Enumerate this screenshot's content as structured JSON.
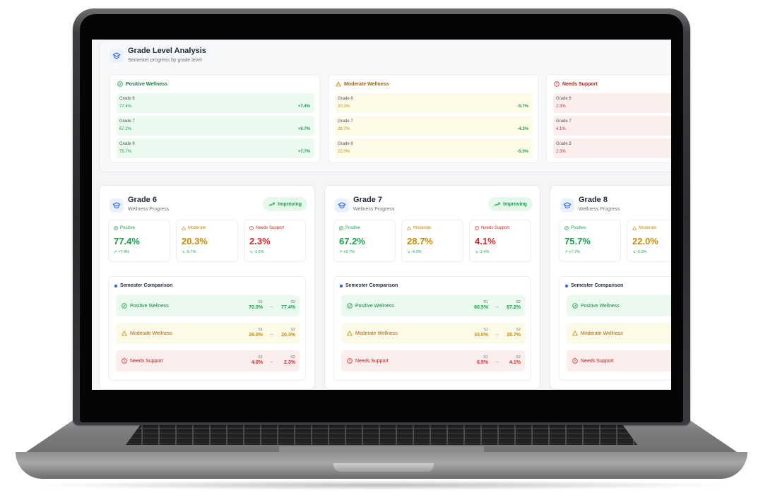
{
  "analysis": {
    "title": "Grade Level Analysis",
    "subtitle": "Semester progress by grade level",
    "categories": [
      {
        "label": "Positive Wellness",
        "color": "#16a34a",
        "rows": [
          {
            "grade": "Grade 6",
            "value": "77.4%",
            "delta": "+7.4%"
          },
          {
            "grade": "Grade 7",
            "value": "67.2%",
            "delta": "+6.7%"
          },
          {
            "grade": "Grade 8",
            "value": "75.7%",
            "delta": "+7.7%"
          }
        ]
      },
      {
        "label": "Moderate Wellness",
        "color": "#ca8a04",
        "rows": [
          {
            "grade": "Grade 6",
            "value": "20.3%",
            "delta": "-5.7%"
          },
          {
            "grade": "Grade 7",
            "value": "28.7%",
            "delta": "-4.3%"
          },
          {
            "grade": "Grade 8",
            "value": "22.0%",
            "delta": "-5.0%"
          }
        ]
      },
      {
        "label": "Needs Support",
        "color": "#dc2626",
        "rows": [
          {
            "grade": "Grade 6",
            "value": "2.3%",
            "delta": ""
          },
          {
            "grade": "Grade 7",
            "value": "4.1%",
            "delta": ""
          },
          {
            "grade": "Grade 8",
            "value": "2.3%",
            "delta": ""
          }
        ]
      }
    ]
  },
  "grades": [
    {
      "title": "Grade 6",
      "subtitle": "Wellness Progress",
      "badge": "Improving",
      "metrics": [
        {
          "label": "Positive",
          "value": "77.4%",
          "delta": "+7.4%"
        },
        {
          "label": "Moderate",
          "value": "20.3%",
          "delta": "-5.7%"
        },
        {
          "label": "Needs Support",
          "value": "2.3%",
          "delta": "-1.6%"
        }
      ],
      "comparison_title": "Semester Comparison",
      "comparison": [
        {
          "label": "Positive Wellness",
          "s1_tag": "S1",
          "s1": "70.0%",
          "s2_tag": "S2",
          "s2": "77.4%"
        },
        {
          "label": "Moderate Wellness",
          "s1_tag": "S1",
          "s1": "26.0%",
          "s2_tag": "S2",
          "s2": "20.3%"
        },
        {
          "label": "Needs Support",
          "s1_tag": "S1",
          "s1": "4.0%",
          "s2_tag": "S2",
          "s2": "2.3%"
        }
      ]
    },
    {
      "title": "Grade 7",
      "subtitle": "Wellness Progress",
      "badge": "Improving",
      "metrics": [
        {
          "label": "Positive",
          "value": "67.2%",
          "delta": "+6.7%"
        },
        {
          "label": "Moderate",
          "value": "28.7%",
          "delta": "-4.3%"
        },
        {
          "label": "Needs Support",
          "value": "4.1%",
          "delta": "-2.4%"
        }
      ],
      "comparison_title": "Semester Comparison",
      "comparison": [
        {
          "label": "Positive Wellness",
          "s1_tag": "S1",
          "s1": "60.5%",
          "s2_tag": "S2",
          "s2": "67.2%"
        },
        {
          "label": "Moderate Wellness",
          "s1_tag": "S1",
          "s1": "33.0%",
          "s2_tag": "S2",
          "s2": "28.7%"
        },
        {
          "label": "Needs Support",
          "s1_tag": "S1",
          "s1": "6.5%",
          "s2_tag": "S2",
          "s2": "4.1%"
        }
      ]
    },
    {
      "title": "Grade 8",
      "subtitle": "Wellness Progress",
      "badge": "",
      "metrics": [
        {
          "label": "Positive",
          "value": "75.7%",
          "delta": "+7.7%"
        },
        {
          "label": "Moderate",
          "value": "22.0%",
          "delta": "-5.0%"
        },
        {
          "label": "",
          "value": "",
          "delta": ""
        }
      ],
      "comparison_title": "Semester Comparison",
      "comparison": [
        {
          "label": "Positive Wellness",
          "s1_tag": "",
          "s1": "",
          "s2_tag": "",
          "s2": ""
        },
        {
          "label": "Moderate Wellness",
          "s1_tag": "",
          "s1": "",
          "s2_tag": "",
          "s2": ""
        },
        {
          "label": "Needs Support",
          "s1_tag": "",
          "s1": "",
          "s2_tag": "",
          "s2": ""
        }
      ]
    }
  ],
  "icons": {
    "header": "graduation-cap-icon",
    "positive": "check-circle-icon",
    "moderate": "warning-triangle-icon",
    "support": "alert-circle-icon",
    "trend_up": "trend-up-icon",
    "trend_down": "trend-down-icon",
    "arrow": "arrow-right-icon"
  },
  "colors": {
    "positive": "#16a34a",
    "moderate": "#ca8a04",
    "support": "#dc2626",
    "accent": "#2563eb"
  }
}
